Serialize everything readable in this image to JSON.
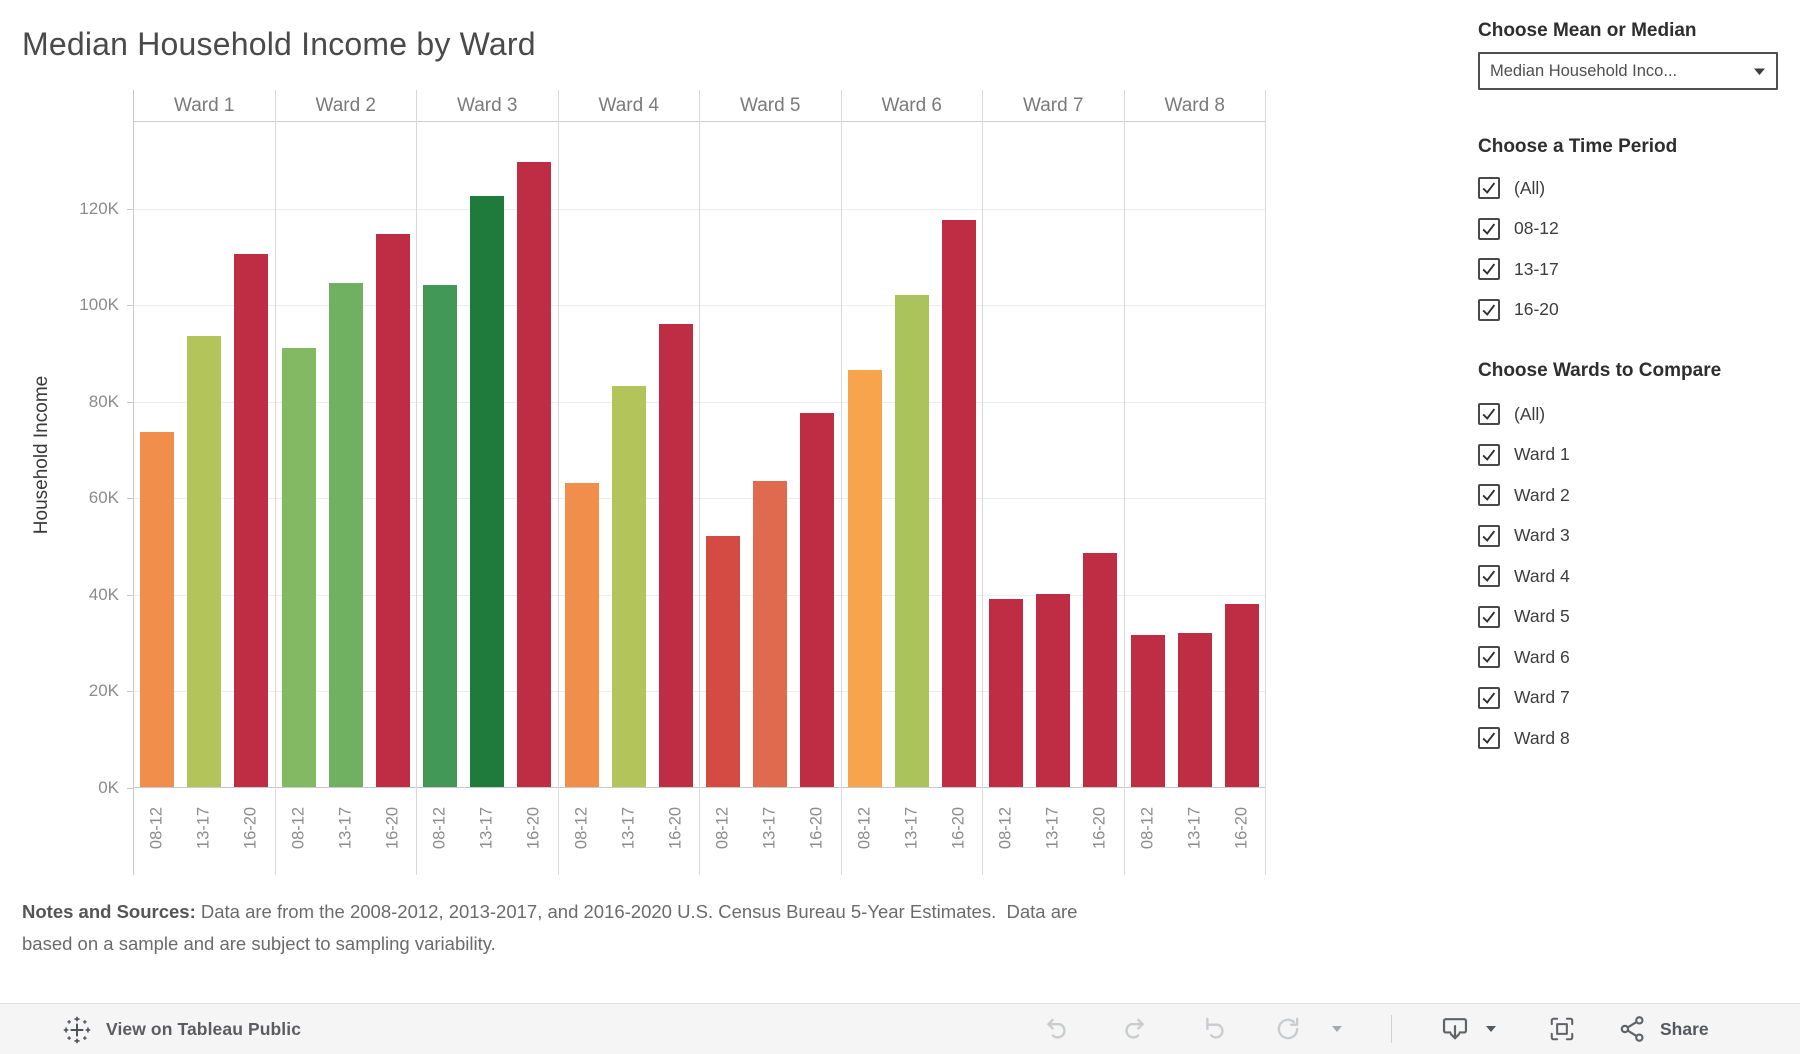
{
  "title": "Median Household Income by Ward",
  "chart_data": {
    "type": "bar",
    "title": "Median Household Income by Ward",
    "xlabel": "",
    "ylabel": "Household Income",
    "ylim": [
      0,
      138000
    ],
    "ytick_interval": 20000,
    "yticks": [
      {
        "label": "0K",
        "value": 0
      },
      {
        "label": "20K",
        "value": 20000
      },
      {
        "label": "40K",
        "value": 40000
      },
      {
        "label": "60K",
        "value": 60000
      },
      {
        "label": "80K",
        "value": 80000
      },
      {
        "label": "100K",
        "value": 100000
      },
      {
        "label": "120K",
        "value": 120000
      }
    ],
    "grid": true,
    "legend": "none",
    "categories": [
      "08-12",
      "13-17",
      "16-20"
    ],
    "wards": [
      {
        "name": "Ward 1",
        "values": [
          73500,
          93500,
          110500
        ],
        "colors": [
          "#F28E4C",
          "#B2C45A",
          "#BE2D43"
        ]
      },
      {
        "name": "Ward 2",
        "values": [
          91000,
          104500,
          114500
        ],
        "colors": [
          "#83B963",
          "#6FB061",
          "#BE2D43"
        ]
      },
      {
        "name": "Ward 3",
        "values": [
          104000,
          122500,
          129500
        ],
        "colors": [
          "#429957",
          "#1E7B3C",
          "#BE2D43"
        ]
      },
      {
        "name": "Ward 4",
        "values": [
          63000,
          83000,
          96000
        ],
        "colors": [
          "#F28E4C",
          "#B2C45A",
          "#BE2D43"
        ]
      },
      {
        "name": "Ward 5",
        "values": [
          52000,
          63500,
          77500
        ],
        "colors": [
          "#D44B43",
          "#E06A4E",
          "#BE2D43"
        ]
      },
      {
        "name": "Ward 6",
        "values": [
          86500,
          102000,
          117500
        ],
        "colors": [
          "#F7A44D",
          "#ABC35B",
          "#BE2D43"
        ]
      },
      {
        "name": "Ward 7",
        "values": [
          39000,
          40000,
          48500
        ],
        "colors": [
          "#BE2D43",
          "#BE2D43",
          "#BE2D43"
        ]
      },
      {
        "name": "Ward 8",
        "values": [
          31500,
          32000,
          38000
        ],
        "colors": [
          "#BE2D43",
          "#BE2D43",
          "#BE2D43"
        ]
      }
    ]
  },
  "controls": {
    "measure": {
      "label": "Choose Mean or Median",
      "value": "Median Household Inco..."
    },
    "time_period": {
      "label": "Choose a Time Period",
      "options": [
        {
          "label": "(All)",
          "checked": true
        },
        {
          "label": "08-12",
          "checked": true
        },
        {
          "label": "13-17",
          "checked": true
        },
        {
          "label": "16-20",
          "checked": true
        }
      ]
    },
    "wards_compare": {
      "label": "Choose Wards to Compare",
      "options": [
        {
          "label": "(All)",
          "checked": true
        },
        {
          "label": "Ward 1",
          "checked": true
        },
        {
          "label": "Ward 2",
          "checked": true
        },
        {
          "label": "Ward 3",
          "checked": true
        },
        {
          "label": "Ward 4",
          "checked": true
        },
        {
          "label": "Ward 5",
          "checked": true
        },
        {
          "label": "Ward 6",
          "checked": true
        },
        {
          "label": "Ward 7",
          "checked": true
        },
        {
          "label": "Ward 8",
          "checked": true
        }
      ]
    }
  },
  "notes": {
    "lead": "Notes and Sources:",
    "line1_rest": " Data are from the 2008-2012, 2013-2017, and 2016-2020 U.S. Census Bureau 5-Year Estimates.  Data are",
    "line2": "based on a sample and are subject to sampling variability."
  },
  "toolbar": {
    "view_label": "View on Tableau Public",
    "share_label": "Share"
  },
  "colors": {
    "crimson": "#BE2D43",
    "axis_line": "#c9c9c9",
    "gridline": "#ededed",
    "toolbar_bg": "#f5f5f6",
    "disabled_icon": "#c9ccce",
    "active_icon": "#606366"
  }
}
